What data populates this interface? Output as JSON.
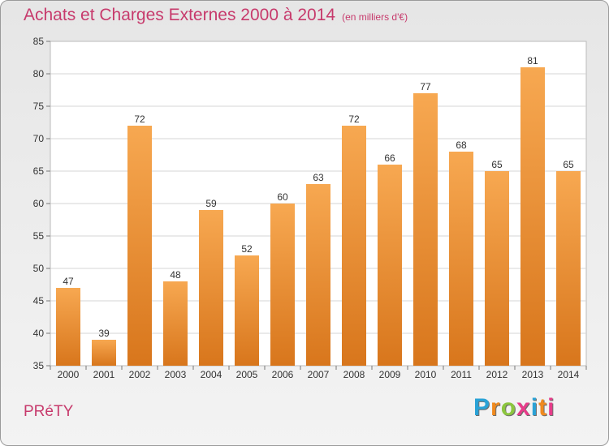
{
  "header": {
    "title": "Achats et Charges Externes 2000 à 2014",
    "subtitle": "(en milliers d'€)"
  },
  "footer": {
    "location": "PRéTY",
    "logo": {
      "letters": [
        "P",
        "r",
        "o",
        "x",
        "i",
        "t",
        "i"
      ],
      "colors": [
        "#2aa2d6",
        "#f08a1e",
        "#8cc63f",
        "#e73c8a",
        "#2aa2d6",
        "#f08a1e",
        "#e73c8a"
      ]
    }
  },
  "colors": {
    "bar_top": "#f7a851",
    "bar_bottom": "#d8761c",
    "accent": "#c73a6c"
  },
  "chart_data": {
    "type": "bar",
    "title": "Achats et Charges Externes 2000 à 2014",
    "subtitle": "(en milliers d'€)",
    "categories": [
      "2000",
      "2001",
      "2002",
      "2003",
      "2004",
      "2005",
      "2006",
      "2007",
      "2008",
      "2009",
      "2010",
      "2011",
      "2012",
      "2013",
      "2014"
    ],
    "values": [
      47,
      39,
      72,
      48,
      59,
      52,
      60,
      63,
      72,
      66,
      77,
      68,
      65,
      81,
      65
    ],
    "ylim": [
      35,
      85
    ],
    "yticks": [
      35,
      40,
      45,
      50,
      55,
      60,
      65,
      70,
      75,
      80,
      85
    ],
    "grid": true,
    "legend": "none"
  }
}
